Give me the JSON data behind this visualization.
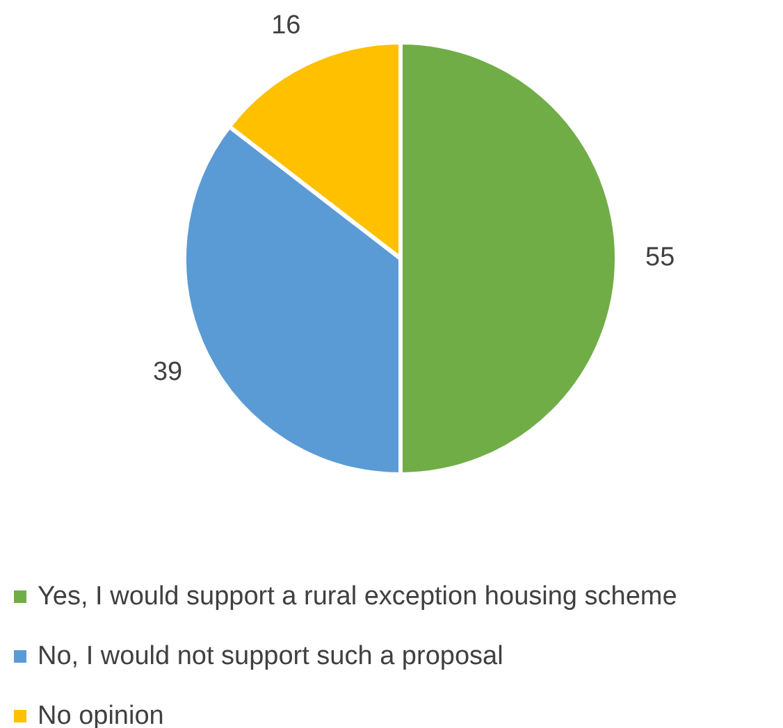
{
  "chart_data": {
    "type": "pie",
    "categories": [
      "Yes, I would support a rural exception housing scheme",
      "No, I would not support such a proposal",
      "No opinion"
    ],
    "values": [
      55,
      39,
      16
    ],
    "colors": [
      "#70ad47",
      "#5b9bd5",
      "#ffc000"
    ],
    "data_labels": true,
    "legend": "bottom"
  }
}
